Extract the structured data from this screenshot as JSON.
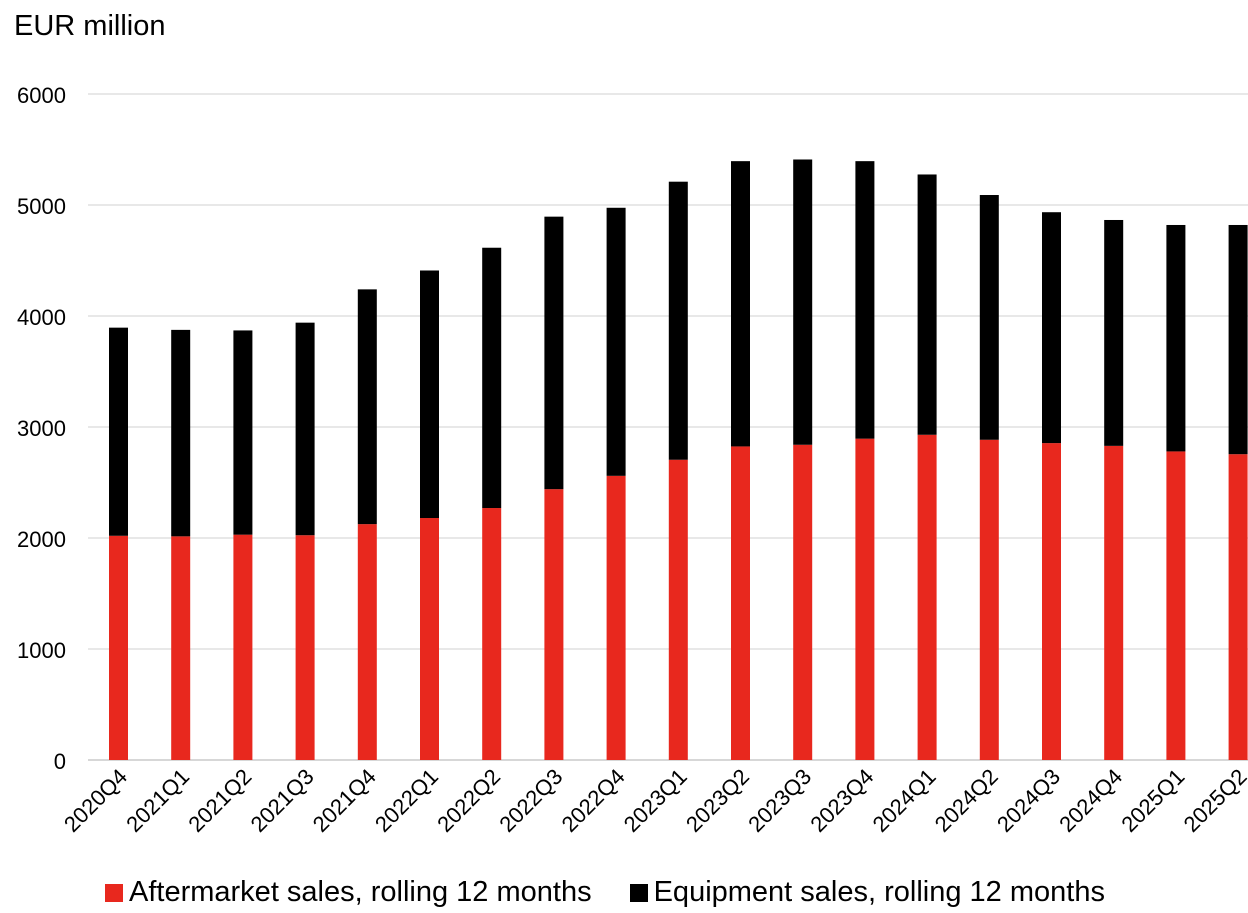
{
  "chart_data": {
    "type": "bar",
    "stacked": true,
    "unit_label": "EUR million",
    "categories": [
      "2020Q4",
      "2021Q1",
      "2021Q2",
      "2021Q3",
      "2021Q4",
      "2022Q1",
      "2022Q2",
      "2022Q3",
      "2022Q4",
      "2023Q1",
      "2023Q2",
      "2023Q3",
      "2023Q4",
      "2024Q1",
      "2024Q2",
      "2024Q3",
      "2024Q4",
      "2025Q1",
      "2025Q2"
    ],
    "series": [
      {
        "name": "Aftermarket sales, rolling 12 months",
        "color": "#e8281e",
        "values": [
          2020,
          2015,
          2030,
          2025,
          2125,
          2180,
          2270,
          2440,
          2560,
          2705,
          2825,
          2840,
          2895,
          2930,
          2885,
          2855,
          2830,
          2780,
          2755
        ]
      },
      {
        "name": "Equipment sales, rolling 12 months",
        "color": "#000000",
        "values": [
          1875,
          1860,
          1840,
          1915,
          2115,
          2230,
          2345,
          2455,
          2415,
          2505,
          2570,
          2570,
          2500,
          2345,
          2205,
          2080,
          2035,
          2040,
          2065
        ]
      }
    ],
    "ylim": [
      0,
      6000
    ],
    "yticks": [
      0,
      1000,
      2000,
      3000,
      4000,
      5000,
      6000
    ],
    "grid": true,
    "legend_position": "bottom"
  }
}
